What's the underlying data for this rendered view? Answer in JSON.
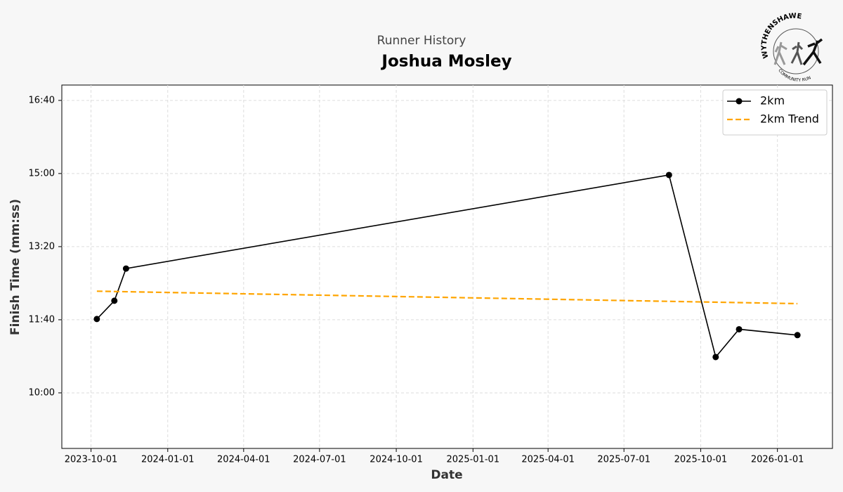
{
  "chart_data": {
    "type": "line",
    "suptitle": "Runner History",
    "title": "Joshua Mosley",
    "x_label": "Date",
    "y_label": "Finish Time (mm:ss)",
    "series": [
      {
        "name": "2km",
        "color": "#000000",
        "style": "solid",
        "marker": true,
        "x": [
          "2023-10-08",
          "2023-10-29",
          "2023-11-12",
          "2025-08-24",
          "2025-10-19",
          "2025-11-16",
          "2026-01-25"
        ],
        "values": [
          701,
          726,
          770,
          898,
          649,
          687,
          679
        ]
      },
      {
        "name": "2km Trend",
        "color": "#ffa500",
        "style": "dashed",
        "marker": false,
        "x": [
          "2023-10-08",
          "2026-01-25"
        ],
        "values": [
          739,
          722
        ]
      }
    ],
    "xlim": [
      "2023-08-27",
      "2026-03-08"
    ],
    "xticks": [
      "2023-10-01",
      "2024-01-01",
      "2024-04-01",
      "2024-07-01",
      "2024-10-01",
      "2025-01-01",
      "2025-04-01",
      "2025-07-01",
      "2025-10-01",
      "2026-01-01"
    ],
    "ylim": [
      524,
      1021
    ],
    "yticks": [
      {
        "value": 600,
        "label": "10:00"
      },
      {
        "value": 700,
        "label": "11:40"
      },
      {
        "value": 800,
        "label": "13:20"
      },
      {
        "value": 900,
        "label": "15:00"
      },
      {
        "value": 1000,
        "label": "16:40"
      }
    ],
    "grid": true,
    "legend": "upper right"
  },
  "logo": {
    "top": "WYTHENSHAWE",
    "bottom": "COMMUNITY RUN"
  }
}
